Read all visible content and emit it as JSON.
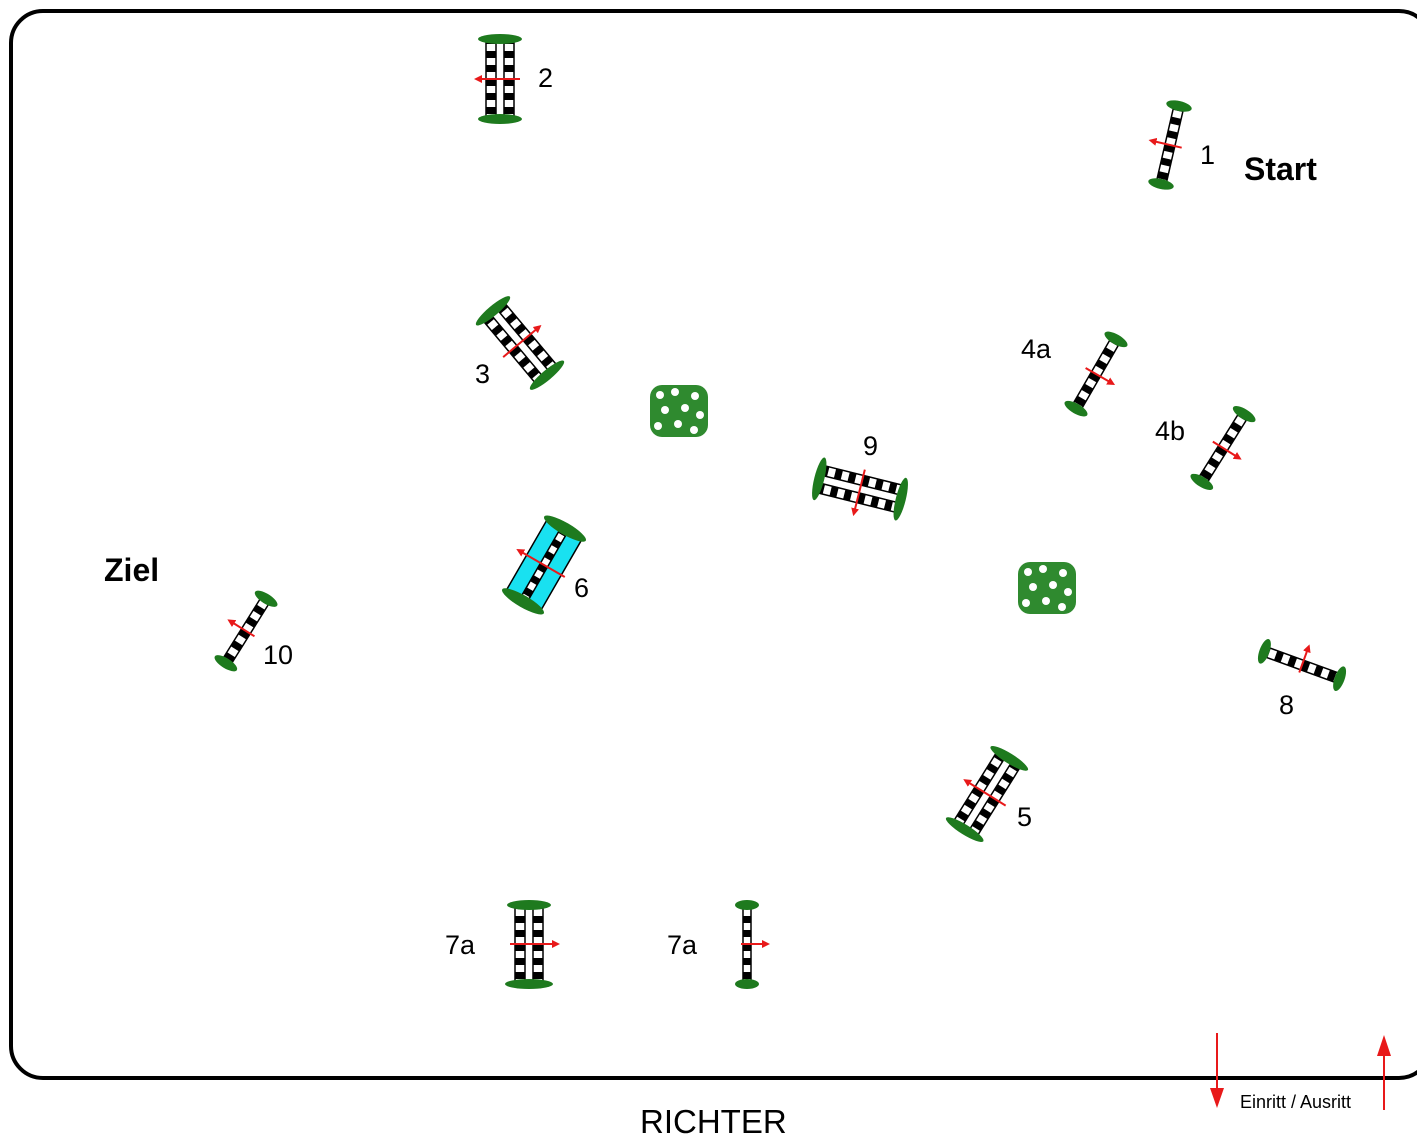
{
  "start_label": "Start",
  "finish_label": "Ziel",
  "judge_label": "RICHTER",
  "gate_label": "Einritt / Ausritt",
  "obstacles": [
    {
      "label": "1",
      "type": "vertical"
    },
    {
      "label": "2",
      "type": "oxer"
    },
    {
      "label": "3",
      "type": "oxer"
    },
    {
      "label": "4a",
      "type": "vertical"
    },
    {
      "label": "4b",
      "type": "vertical"
    },
    {
      "label": "5",
      "type": "oxer"
    },
    {
      "label": "6",
      "type": "water-oxer"
    },
    {
      "label": "7a",
      "type": "oxer"
    },
    {
      "label": "7a",
      "type": "vertical"
    },
    {
      "label": "8",
      "type": "vertical"
    },
    {
      "label": "9",
      "type": "oxer"
    },
    {
      "label": "10",
      "type": "vertical"
    }
  ],
  "decorations": [
    "flower-bush",
    "flower-bush"
  ],
  "colors": {
    "border": "#000000",
    "pole_dark": "#000000",
    "pole_light": "#ffffff",
    "wing": "#1e7a1e",
    "arrow": "#e8191a",
    "water": "#19e1f0",
    "bush": "#2f8a2f"
  }
}
